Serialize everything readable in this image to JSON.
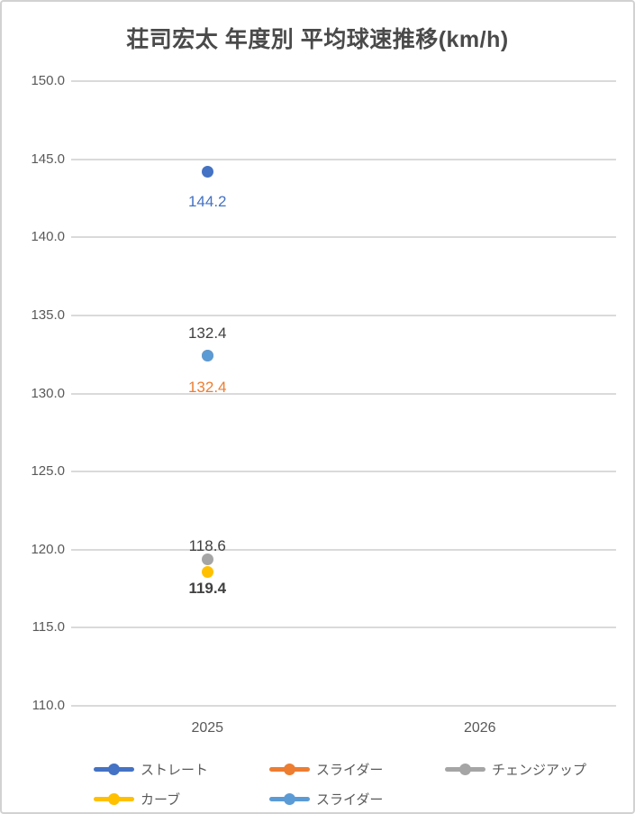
{
  "chart_data": {
    "type": "line",
    "title": "荘司宏太 年度別 平均球速推移(km/h)",
    "categories": [
      "2025",
      "2026"
    ],
    "xlabel": "",
    "ylabel": "",
    "y_axis": {
      "min": 110.0,
      "max": 150.0,
      "step": 5.0
    },
    "y_tick_labels": [
      "150.0",
      "145.0",
      "140.0",
      "135.0",
      "130.0",
      "125.0",
      "120.0",
      "115.0",
      "110.0"
    ],
    "grid": true,
    "legend_position": "bottom",
    "colors": {
      "title": "#4a4a4a",
      "axis_text": "#595959",
      "gridline": "#dadada",
      "data_label_default": "#404040"
    },
    "series": [
      {
        "key": "straight",
        "name": "ストレート",
        "color": "#4472C4",
        "values": [
          144.2,
          null
        ],
        "label": {
          "text": "144.2",
          "color": "#4472C4",
          "bold": false,
          "dy": 34
        }
      },
      {
        "key": "slider",
        "name": "スライダー",
        "color": "#ED7D31",
        "values": [
          132.4,
          null
        ],
        "label": {
          "text": "132.4",
          "color": "#ED7D31",
          "bold": false,
          "dy": 35
        }
      },
      {
        "key": "changeup",
        "name": "チェンジアップ",
        "color": "#A5A5A5",
        "values": [
          119.4,
          null
        ],
        "label": {
          "text": "119.4",
          "color": "#404040",
          "bold": true,
          "dy": 33
        }
      },
      {
        "key": "curve",
        "name": "カーブ",
        "color": "#FFC000",
        "values": [
          118.6,
          null
        ],
        "label": {
          "text": "118.6",
          "color": "#404040",
          "bold": false,
          "dy": -28
        }
      },
      {
        "key": "slider-blue",
        "name": "スライダー",
        "color": "#5B9BD5",
        "values": [
          132.4,
          null
        ],
        "label": {
          "text": "132.4",
          "color": "#404040",
          "bold": false,
          "dy": -25
        }
      }
    ]
  }
}
